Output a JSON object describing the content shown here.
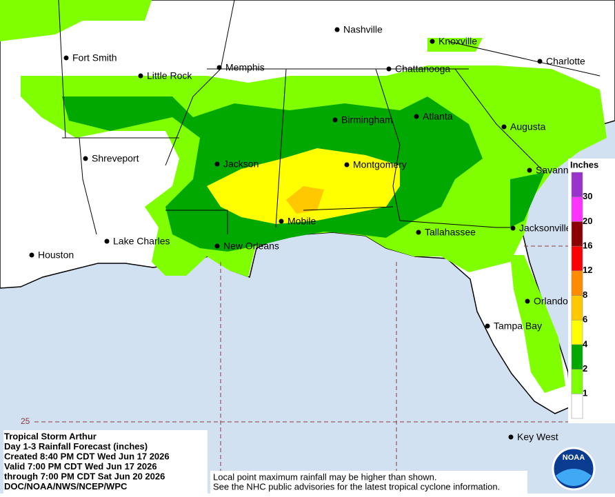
{
  "cities": [
    "Nashville",
    "Knoxville",
    "Fort Smith",
    "Charlotte",
    "Little Rock",
    "Memphis",
    "Chattanooga",
    "Birmingham",
    "Atlanta",
    "Augusta",
    "Shreveport",
    "Jackson",
    "Montgomery",
    "Savannah",
    "Mobile",
    "Jacksonville",
    "Tallahassee",
    "Lake Charles",
    "New Orleans",
    "Houston",
    "Orlando",
    "Tampa Bay",
    "Key West"
  ],
  "latitude_label": "25",
  "legend": {
    "title": "Inches",
    "breaks": [
      1,
      2,
      4,
      6,
      8,
      12,
      16,
      20,
      30
    ],
    "colors": [
      "#ffffff",
      "#7fff00",
      "#00a800",
      "#ffff00",
      "#ffc800",
      "#ff8c00",
      "#ff0000",
      "#8b0000",
      "#ff33ff",
      "#9933cc"
    ]
  },
  "info": {
    "lines": [
      "Tropical Storm Arthur",
      "Day 1-3 Rainfall Forecast (inches)",
      "Created 8:40 PM CDT Wed Jun 17 2026",
      "Valid 7:00 PM CDT Wed Jun 17 2026",
      "through 7:00 PM CDT Sat Jun 20 2026",
      "DOC/NOAA/NWS/NCEP/WPC"
    ]
  },
  "disclaimer": [
    "Local point maximum rainfall may be higher than shown.",
    "See the NHC public advisories for the latest tropical cyclone information."
  ],
  "logo": "NOAA"
}
